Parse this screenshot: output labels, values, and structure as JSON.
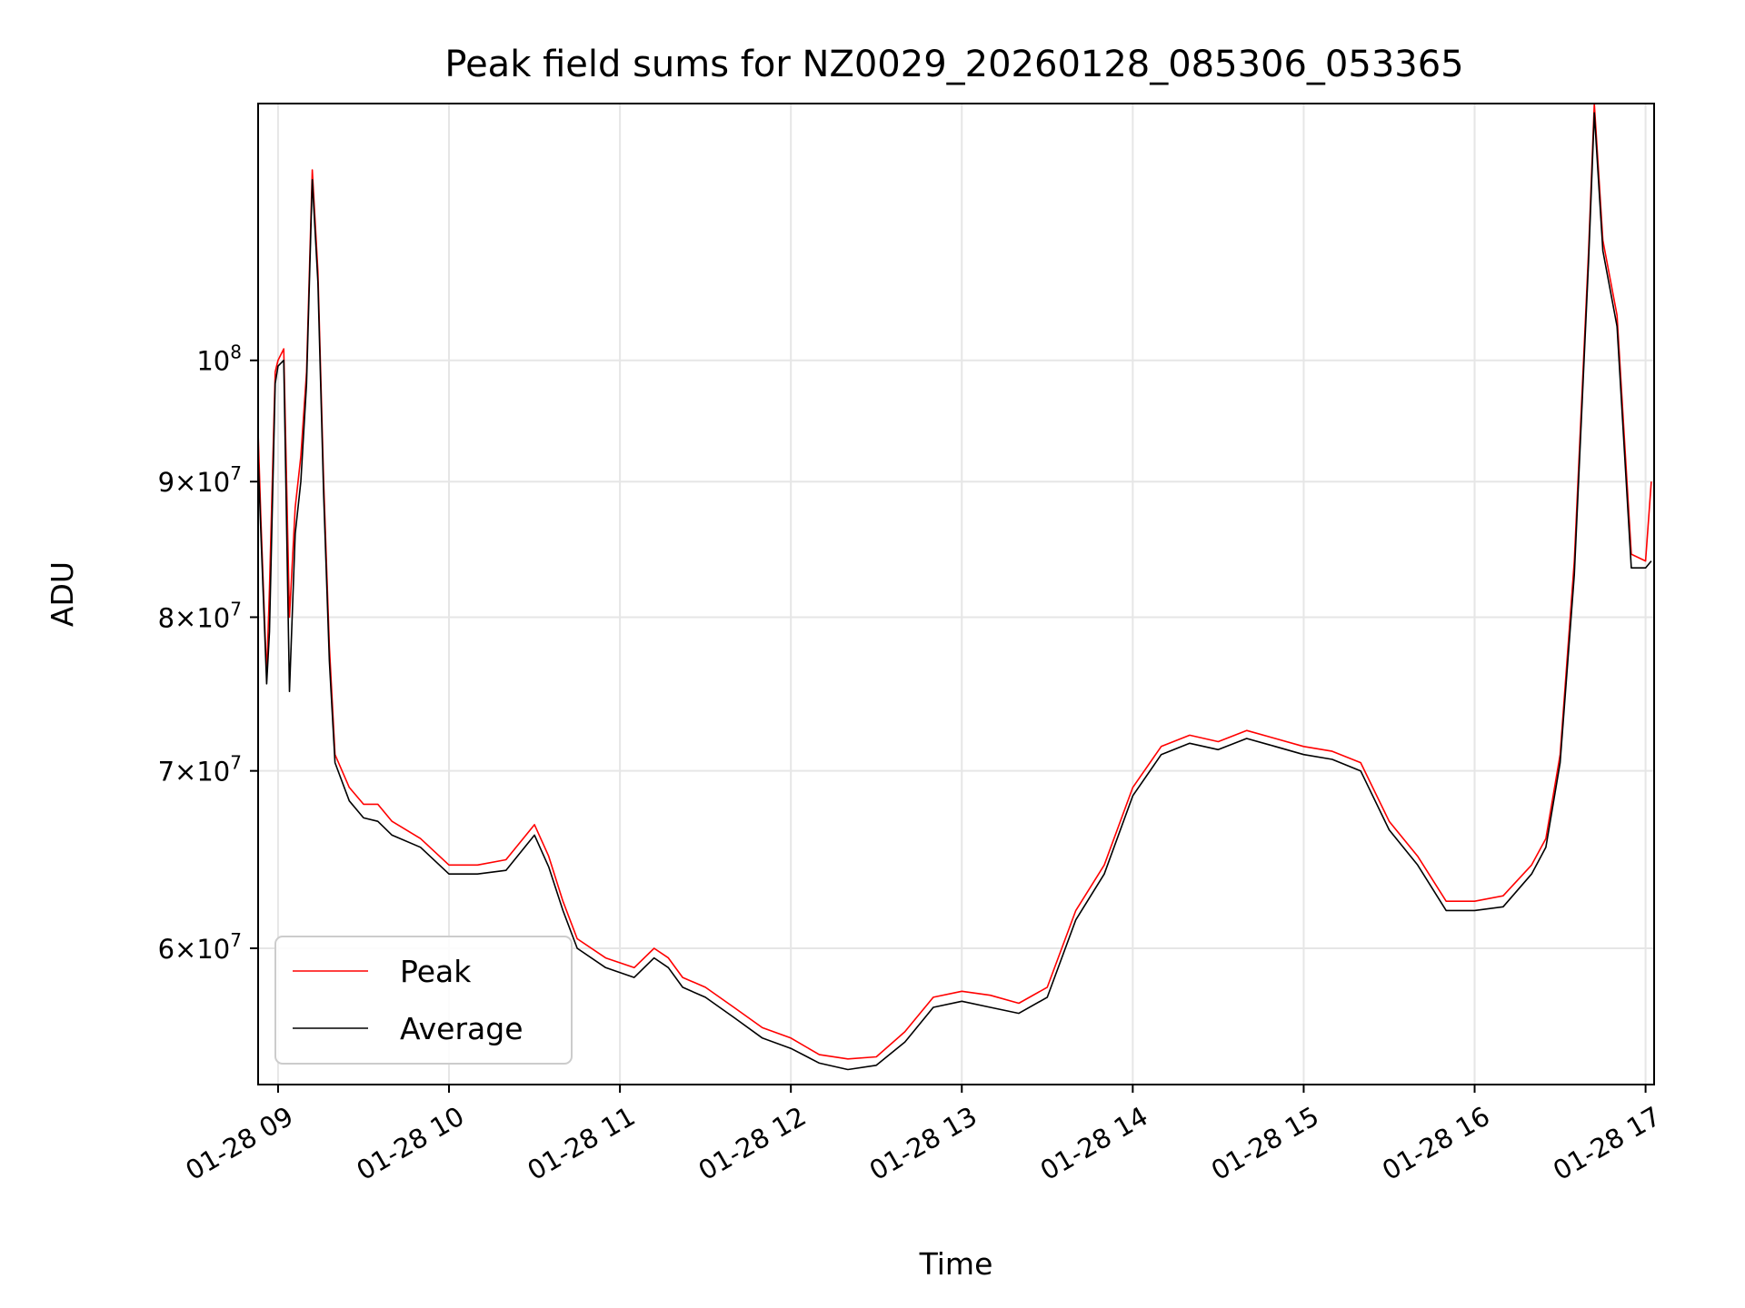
{
  "chart_data": {
    "type": "line",
    "title": "Peak field sums for NZ0029_20260128_085306_053365",
    "xlabel": "Time",
    "ylabel": "ADU",
    "yscale": "log",
    "grid": true,
    "legend_position": "lower-left",
    "xlim": [
      "2026-01-28 08:53",
      "2026-01-28 17:03"
    ],
    "ylim": [
      53300000,
      125000000
    ],
    "x_ticks": [
      {
        "t": "2026-01-28 09:00",
        "label": "01-28 09"
      },
      {
        "t": "2026-01-28 10:00",
        "label": "01-28 10"
      },
      {
        "t": "2026-01-28 11:00",
        "label": "01-28 11"
      },
      {
        "t": "2026-01-28 12:00",
        "label": "01-28 12"
      },
      {
        "t": "2026-01-28 13:00",
        "label": "01-28 13"
      },
      {
        "t": "2026-01-28 14:00",
        "label": "01-28 14"
      },
      {
        "t": "2026-01-28 15:00",
        "label": "01-28 15"
      },
      {
        "t": "2026-01-28 16:00",
        "label": "01-28 16"
      },
      {
        "t": "2026-01-28 17:00",
        "label": "01-28 17"
      }
    ],
    "y_ticks": [
      {
        "value": 60000000,
        "mant": "6",
        "exp": "7"
      },
      {
        "value": 70000000,
        "mant": "7",
        "exp": "7"
      },
      {
        "value": 80000000,
        "mant": "8",
        "exp": "7"
      },
      {
        "value": 90000000,
        "mant": "9",
        "exp": "7"
      },
      {
        "value": 100000000,
        "mant": "",
        "exp": "8"
      }
    ],
    "series": [
      {
        "name": "Peak",
        "color": "#ff0000",
        "x": [
          "2026-01-28 08:53",
          "2026-01-28 08:54",
          "2026-01-28 08:56",
          "2026-01-28 08:57",
          "2026-01-28 08:59",
          "2026-01-28 09:00",
          "2026-01-28 09:02",
          "2026-01-28 09:04",
          "2026-01-28 09:06",
          "2026-01-28 09:08",
          "2026-01-28 09:10",
          "2026-01-28 09:12",
          "2026-01-28 09:14",
          "2026-01-28 09:16",
          "2026-01-28 09:18",
          "2026-01-28 09:20",
          "2026-01-28 09:25",
          "2026-01-28 09:30",
          "2026-01-28 09:35",
          "2026-01-28 09:40",
          "2026-01-28 09:50",
          "2026-01-28 10:00",
          "2026-01-28 10:10",
          "2026-01-28 10:20",
          "2026-01-28 10:30",
          "2026-01-28 10:35",
          "2026-01-28 10:40",
          "2026-01-28 10:45",
          "2026-01-28 10:55",
          "2026-01-28 11:05",
          "2026-01-28 11:12",
          "2026-01-28 11:17",
          "2026-01-28 11:22",
          "2026-01-28 11:30",
          "2026-01-28 11:40",
          "2026-01-28 11:50",
          "2026-01-28 12:00",
          "2026-01-28 12:10",
          "2026-01-28 12:20",
          "2026-01-28 12:30",
          "2026-01-28 12:40",
          "2026-01-28 12:50",
          "2026-01-28 13:00",
          "2026-01-28 13:10",
          "2026-01-28 13:20",
          "2026-01-28 13:30",
          "2026-01-28 13:40",
          "2026-01-28 13:50",
          "2026-01-28 14:00",
          "2026-01-28 14:10",
          "2026-01-28 14:20",
          "2026-01-28 14:30",
          "2026-01-28 14:40",
          "2026-01-28 14:50",
          "2026-01-28 15:00",
          "2026-01-28 15:10",
          "2026-01-28 15:20",
          "2026-01-28 15:30",
          "2026-01-28 15:40",
          "2026-01-28 15:50",
          "2026-01-28 16:00",
          "2026-01-28 16:10",
          "2026-01-28 16:20",
          "2026-01-28 16:25",
          "2026-01-28 16:30",
          "2026-01-28 16:35",
          "2026-01-28 16:40",
          "2026-01-28 16:42",
          "2026-01-28 16:45",
          "2026-01-28 16:50",
          "2026-01-28 16:55",
          "2026-01-28 17:00",
          "2026-01-28 17:02"
        ],
        "values": [
          94000000,
          87000000,
          76000000,
          82000000,
          99000000,
          100000000,
          101000000,
          80000000,
          88000000,
          92000000,
          99000000,
          118000000,
          108000000,
          90000000,
          78000000,
          71000000,
          69000000,
          68000000,
          68000000,
          67000000,
          66000000,
          64500000,
          64500000,
          64800000,
          66800000,
          65000000,
          62500000,
          60500000,
          59500000,
          59000000,
          60000000,
          59500000,
          58500000,
          58000000,
          57000000,
          56000000,
          55500000,
          54700000,
          54500000,
          54600000,
          55800000,
          57500000,
          57800000,
          57600000,
          57200000,
          58000000,
          62000000,
          64500000,
          69000000,
          71500000,
          72200000,
          71800000,
          72500000,
          72000000,
          71500000,
          71200000,
          70500000,
          67000000,
          65000000,
          62500000,
          62500000,
          62800000,
          64500000,
          66000000,
          71000000,
          84000000,
          110000000,
          125000000,
          111000000,
          104000000,
          84500000,
          84000000,
          90000000
        ]
      },
      {
        "name": "Average",
        "color": "#000000",
        "x": [
          "2026-01-28 08:53",
          "2026-01-28 08:54",
          "2026-01-28 08:56",
          "2026-01-28 08:57",
          "2026-01-28 08:59",
          "2026-01-28 09:00",
          "2026-01-28 09:02",
          "2026-01-28 09:04",
          "2026-01-28 09:06",
          "2026-01-28 09:08",
          "2026-01-28 09:10",
          "2026-01-28 09:12",
          "2026-01-28 09:14",
          "2026-01-28 09:16",
          "2026-01-28 09:18",
          "2026-01-28 09:20",
          "2026-01-28 09:25",
          "2026-01-28 09:30",
          "2026-01-28 09:35",
          "2026-01-28 09:40",
          "2026-01-28 09:50",
          "2026-01-28 10:00",
          "2026-01-28 10:10",
          "2026-01-28 10:20",
          "2026-01-28 10:30",
          "2026-01-28 10:35",
          "2026-01-28 10:40",
          "2026-01-28 10:45",
          "2026-01-28 10:55",
          "2026-01-28 11:05",
          "2026-01-28 11:12",
          "2026-01-28 11:17",
          "2026-01-28 11:22",
          "2026-01-28 11:30",
          "2026-01-28 11:40",
          "2026-01-28 11:50",
          "2026-01-28 12:00",
          "2026-01-28 12:10",
          "2026-01-28 12:20",
          "2026-01-28 12:30",
          "2026-01-28 12:40",
          "2026-01-28 12:50",
          "2026-01-28 13:00",
          "2026-01-28 13:10",
          "2026-01-28 13:20",
          "2026-01-28 13:30",
          "2026-01-28 13:40",
          "2026-01-28 13:50",
          "2026-01-28 14:00",
          "2026-01-28 14:10",
          "2026-01-28 14:20",
          "2026-01-28 14:30",
          "2026-01-28 14:40",
          "2026-01-28 14:50",
          "2026-01-28 15:00",
          "2026-01-28 15:10",
          "2026-01-28 15:20",
          "2026-01-28 15:30",
          "2026-01-28 15:40",
          "2026-01-28 15:50",
          "2026-01-28 16:00",
          "2026-01-28 16:10",
          "2026-01-28 16:20",
          "2026-01-28 16:25",
          "2026-01-28 16:30",
          "2026-01-28 16:35",
          "2026-01-28 16:40",
          "2026-01-28 16:42",
          "2026-01-28 16:45",
          "2026-01-28 16:50",
          "2026-01-28 16:55",
          "2026-01-28 17:00",
          "2026-01-28 17:02"
        ],
        "values": [
          92000000,
          86000000,
          75500000,
          79000000,
          98000000,
          99500000,
          100000000,
          75000000,
          86000000,
          90000000,
          98000000,
          117000000,
          107000000,
          89000000,
          77000000,
          70500000,
          68200000,
          67200000,
          67000000,
          66200000,
          65500000,
          64000000,
          64000000,
          64200000,
          66200000,
          64400000,
          62000000,
          60000000,
          59000000,
          58500000,
          59500000,
          59000000,
          58000000,
          57500000,
          56500000,
          55500000,
          55000000,
          54300000,
          54000000,
          54200000,
          55300000,
          57000000,
          57300000,
          57000000,
          56700000,
          57500000,
          61500000,
          64000000,
          68500000,
          71000000,
          71700000,
          71300000,
          72000000,
          71500000,
          71000000,
          70700000,
          70000000,
          66500000,
          64500000,
          62000000,
          62000000,
          62200000,
          64000000,
          65500000,
          70500000,
          83000000,
          109000000,
          124000000,
          110000000,
          103000000,
          83500000,
          83500000,
          84000000
        ]
      }
    ]
  }
}
